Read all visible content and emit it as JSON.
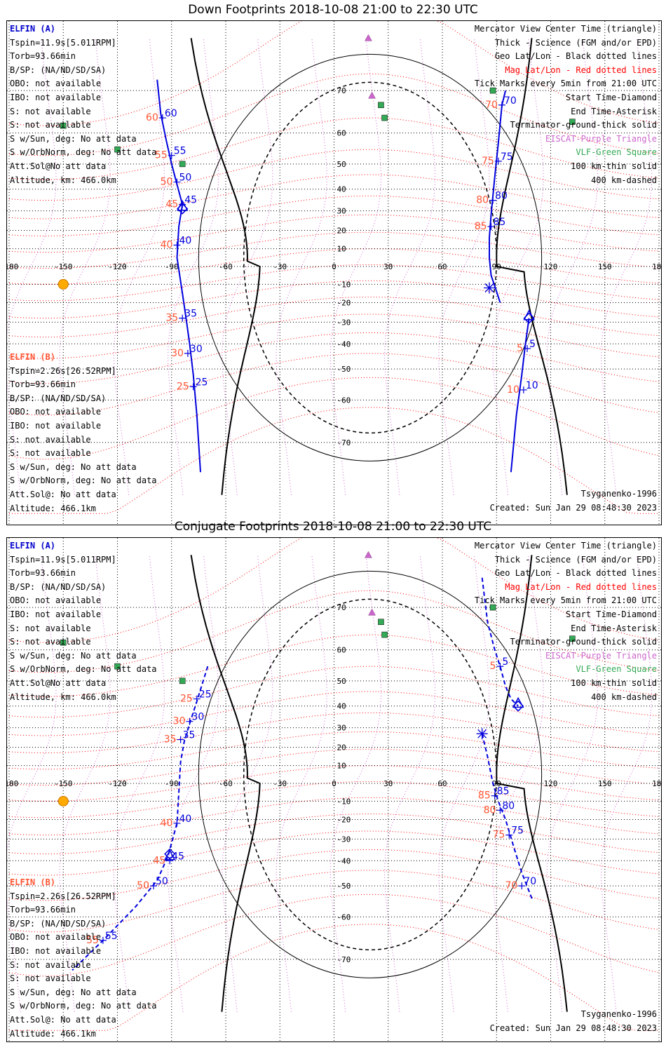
{
  "panels": [
    {
      "title": "Down Footprints 2018-10-08 21:00 to 22:30 UTC",
      "info_a": {
        "sat": "ELFIN (A)",
        "lines": [
          "Tspin=11.9s[5.011RPM]",
          "Torb=93.66min",
          "B/SP: (NA/ND/SD/SA)",
          "OBO: not available",
          "IBO: not available",
          "S: not available",
          "S: not available",
          "S w/Sun, deg: No att data",
          "S w/OrbNorm, deg: No att data",
          "Att.Sol@No att data",
          "Altitude, km: 466.0km"
        ]
      },
      "info_b": {
        "sat": "ELFIN (B)",
        "lines": [
          "Tspin=2.26s[26.52RPM]",
          "Torb=93.66min",
          "B/SP: (NA/ND/SD/SA)",
          "OBO: not available",
          "IBO: not available",
          "S: not available",
          "S: not available",
          "S w/Sun, deg: No att data",
          "S w/OrbNorm, deg: No att data",
          "Att.Sol@: No att data",
          "Altitude: 466.1km"
        ]
      },
      "model": "Tsyganenko-1996",
      "created": "Created: Sun Jan 29 08:48:30 2023"
    },
    {
      "title": "Conjugate Footprints 2018-10-08 21:00 to 22:30 UTC",
      "info_a": {
        "sat": "ELFIN (A)",
        "lines": [
          "Tspin=11.9s[5.011RPM]",
          "Torb=93.66min",
          "B/SP: (NA/ND/SD/SA)",
          "OBO: not available",
          "IBO: not available",
          "S: not available",
          "S: not available",
          "S w/Sun, deg: No att data",
          "S w/OrbNorm, deg: No att data",
          "Att.Sol@No att data",
          "Altitude, km: 466.0km"
        ]
      },
      "info_b": {
        "sat": "ELFIN (B)",
        "lines": [
          "Tspin=2.26s[26.52RPM]",
          "Torb=93.66min",
          "B/SP: (NA/ND/SD/SA)",
          "OBO: not available",
          "IBO: not available",
          "S: not available",
          "S: not available",
          "S w/Sun, deg: No att data",
          "S w/OrbNorm, deg: No att data",
          "Att.Sol@: No att data",
          "Altitude: 466.1km"
        ]
      },
      "model": "Tsyganenko-1996",
      "created": "Created: Sun Jan 29 08:48:30 2023"
    }
  ],
  "legend": [
    {
      "text": "Mercator View Center Time (triangle)",
      "color": "#000000"
    },
    {
      "text": "Thick - Science (FGM and/or EPD)",
      "color": "#000000"
    },
    {
      "text": "Geo Lat/Lon - Black dotted lines",
      "color": "#000000"
    },
    {
      "text": "Mag Lat/Lon - Red dotted lines",
      "color": "#ff0000"
    },
    {
      "text": "Tick Marks every 5min from 21:00 UTC",
      "color": "#000000"
    },
    {
      "text": "Start Time-Diamond",
      "color": "#000000"
    },
    {
      "text": "End Time-Asterisk",
      "color": "#000000"
    },
    {
      "text": "Terminator-ground-thick solid",
      "color": "#000000"
    },
    {
      "text": "EISCAT-Purple Triangle",
      "color": "#cc66cc"
    },
    {
      "text": "VLF-Green Square",
      "color": "#33aa55"
    },
    {
      "text": "100 km-thin solid",
      "color": "#000000"
    },
    {
      "text": "400 km-dashed",
      "color": "#000000"
    }
  ],
  "colors": {
    "track_a": "#0000dd",
    "track_b": "#ff5533",
    "mag_grid": "#ff0000",
    "geo_grid": "#000000",
    "eiscat": "#cc66cc",
    "vlf": "#33aa55",
    "sun": "#ffaa00"
  },
  "chart_data": [
    {
      "type": "line",
      "title": "Down Footprints 2018-10-08 21:00 to 22:30 UTC",
      "projection": "mercator",
      "xlim": [
        -180,
        180
      ],
      "lon_ticks": [
        -180,
        -150,
        -120,
        -90,
        -60,
        -30,
        0,
        30,
        60,
        90,
        120,
        150,
        180
      ],
      "lon_tick_labels": [
        "-180",
        "-150",
        "-120",
        "-90",
        "-60",
        "-30",
        "0",
        "30",
        "60",
        "90",
        "120",
        "150",
        "180"
      ],
      "lat_ticks": [
        -70,
        -60,
        -50,
        -40,
        -30,
        -20,
        -10,
        0,
        10,
        20,
        30,
        40,
        50,
        60,
        70
      ],
      "lat_tick_labels": [
        "-70",
        "-60",
        "-50",
        "-40",
        "-30",
        "-20",
        "-10",
        "0",
        "10",
        "20",
        "30",
        "40",
        "50",
        "60",
        "70"
      ],
      "series": [
        {
          "name": "ELFIN (A)",
          "style": "solid",
          "points": [
            [
              -98,
              72
            ],
            [
              -96,
              65
            ],
            [
              -93,
              58
            ],
            [
              -90,
              50
            ],
            [
              -87,
              42
            ],
            [
              -84,
              33
            ],
            [
              -86,
              22
            ],
            [
              -87,
              5
            ],
            [
              -84,
              -15
            ],
            [
              -82,
              -28
            ],
            [
              -80,
              -40
            ],
            [
              -78,
              -52
            ],
            [
              -76,
              -64
            ],
            [
              -74,
              -75
            ]
          ],
          "ticks": [
            {
              "lon": -95,
              "lat": 64,
              "label": "60"
            },
            {
              "lon": -90,
              "lat": 53,
              "label": "55"
            },
            {
              "lon": -87,
              "lat": 43,
              "label": "50"
            },
            {
              "lon": -84,
              "lat": 33,
              "label": "45"
            },
            {
              "lon": -87,
              "lat": 12,
              "label": "40"
            },
            {
              "lon": -84,
              "lat": -28,
              "label": "35"
            },
            {
              "lon": -81,
              "lat": -44,
              "label": "30"
            },
            {
              "lon": -78,
              "lat": -56,
              "label": "25"
            }
          ]
        },
        {
          "name": "ELFIN (A) pass 2",
          "style": "solid",
          "points": [
            [
              92,
              -20
            ],
            [
              90,
              -14
            ],
            [
              87,
              -5
            ],
            [
              86,
              5
            ],
            [
              86,
              16
            ],
            [
              87,
              28
            ],
            [
              89,
              45
            ],
            [
              91,
              57
            ],
            [
              93,
              67
            ],
            [
              95,
              70
            ]
          ],
          "ticks": [
            {
              "lon": 93,
              "lat": 67,
              "label": "70"
            },
            {
              "lon": 91,
              "lat": 51,
              "label": "75"
            },
            {
              "lon": 88,
              "lat": 35,
              "label": "80"
            },
            {
              "lon": 87,
              "lat": 22,
              "label": "85"
            }
          ]
        },
        {
          "name": "ELFIN (A) pass 3",
          "style": "solid",
          "points": [
            [
              108,
              -28
            ],
            [
              106,
              -40
            ],
            [
              104,
              -52
            ],
            [
              101,
              -64
            ],
            [
              98,
              -75
            ]
          ],
          "ticks": [
            {
              "lon": 107,
              "lat": -42,
              "label": "5"
            },
            {
              "lon": 105,
              "lat": -57,
              "label": "10"
            }
          ]
        }
      ],
      "start_points": [
        {
          "lon": -84,
          "lat": 31
        },
        {
          "lon": 108,
          "lat": -28
        }
      ],
      "end_points": [
        {
          "lon": 86,
          "lat": -12
        }
      ],
      "center_time": [
        {
          "lon": -84,
          "lat": 32
        },
        {
          "lon": 108,
          "lat": -27
        }
      ],
      "eiscat": [
        {
          "lon": 19,
          "lat": 78
        },
        {
          "lon": 21,
          "lat": 69
        }
      ],
      "vlf": [
        {
          "lon": -150,
          "lat": 62
        },
        {
          "lon": -120,
          "lat": 55
        },
        {
          "lon": -84,
          "lat": 50
        },
        {
          "lon": 26,
          "lat": 67
        },
        {
          "lon": 28,
          "lat": 64
        },
        {
          "lon": 88,
          "lat": 70
        },
        {
          "lon": 132,
          "lat": 63
        }
      ],
      "sun": {
        "lon": -150,
        "lat": -10
      }
    },
    {
      "type": "line",
      "title": "Conjugate Footprints 2018-10-08 21:00 to 22:30 UTC",
      "projection": "mercator",
      "xlim": [
        -180,
        180
      ],
      "lon_ticks": [
        -180,
        -150,
        -120,
        -90,
        -60,
        -30,
        0,
        30,
        60,
        90,
        120,
        150,
        180
      ],
      "lon_tick_labels": [
        "-180",
        "-150",
        "-120",
        "-90",
        "-60",
        "-30",
        "0",
        "30",
        "60",
        "90",
        "120",
        "150",
        "180"
      ],
      "lat_ticks": [
        -70,
        -60,
        -50,
        -40,
        -30,
        -20,
        -10,
        0,
        10,
        20,
        30,
        40,
        50,
        60,
        70
      ],
      "lat_tick_labels": [
        "-70",
        "-60",
        "-50",
        "-40",
        "-30",
        "-20",
        "-10",
        "0",
        "10",
        "20",
        "30",
        "40",
        "50",
        "60",
        "70"
      ],
      "series": [
        {
          "name": "ELFIN (A)",
          "style": "dashed",
          "points": [
            [
              -70,
              55
            ],
            [
              -76,
              42
            ],
            [
              -80,
              32
            ],
            [
              -83,
              23
            ],
            [
              -85,
              12
            ],
            [
              -86,
              -5
            ],
            [
              -87,
              -22
            ],
            [
              -92,
              -38
            ],
            [
              -98,
              -48
            ],
            [
              -110,
              -57
            ],
            [
              -128,
              -66
            ],
            [
              -145,
              -72
            ]
          ],
          "ticks": [
            {
              "lon": -76,
              "lat": 43,
              "label": "25"
            },
            {
              "lon": -80,
              "lat": 33,
              "label": "30"
            },
            {
              "lon": -85,
              "lat": 24,
              "label": "35"
            },
            {
              "lon": -87,
              "lat": -22,
              "label": "40"
            },
            {
              "lon": -91,
              "lat": -40,
              "label": "45"
            },
            {
              "lon": -100,
              "lat": -50,
              "label": "50"
            },
            {
              "lon": -128,
              "lat": -66,
              "label": "55"
            }
          ]
        },
        {
          "name": "ELFIN (A) pass 2",
          "style": "dashed",
          "points": [
            [
              82,
              75
            ],
            [
              85,
              67
            ],
            [
              89,
              60
            ],
            [
              92,
              55
            ],
            [
              95,
              48
            ],
            [
              98,
              43
            ],
            [
              102,
              40
            ]
          ],
          "ticks": [
            {
              "lon": 92,
              "lat": 55,
              "label": "5"
            }
          ]
        },
        {
          "name": "ELFIN (A) pass 3",
          "style": "dashed",
          "points": [
            [
              82,
              27
            ],
            [
              85,
              15
            ],
            [
              88,
              0
            ],
            [
              91,
              -10
            ],
            [
              95,
              -20
            ],
            [
              100,
              -35
            ],
            [
              104,
              -45
            ],
            [
              110,
              -55
            ]
          ],
          "ticks": [
            {
              "lon": 89,
              "lat": -7,
              "label": "85"
            },
            {
              "lon": 92,
              "lat": -15,
              "label": "80"
            },
            {
              "lon": 97,
              "lat": -28,
              "label": "75"
            },
            {
              "lon": 104,
              "lat": -50,
              "label": "70"
            }
          ]
        }
      ],
      "start_points": [
        {
          "lon": 102,
          "lat": 40
        },
        {
          "lon": -91,
          "lat": -37
        }
      ],
      "end_points": [
        {
          "lon": 82,
          "lat": 27
        }
      ],
      "center_time": [
        {
          "lon": -91,
          "lat": -38
        },
        {
          "lon": 102,
          "lat": 41
        }
      ],
      "eiscat": [
        {
          "lon": 19,
          "lat": 78
        },
        {
          "lon": 21,
          "lat": 69
        }
      ],
      "vlf": [
        {
          "lon": -150,
          "lat": 62
        },
        {
          "lon": -120,
          "lat": 55
        },
        {
          "lon": -84,
          "lat": 50
        },
        {
          "lon": 26,
          "lat": 67
        },
        {
          "lon": 28,
          "lat": 64
        },
        {
          "lon": 88,
          "lat": 70
        },
        {
          "lon": 132,
          "lat": 63
        }
      ],
      "sun": {
        "lon": -150,
        "lat": -10
      }
    }
  ]
}
